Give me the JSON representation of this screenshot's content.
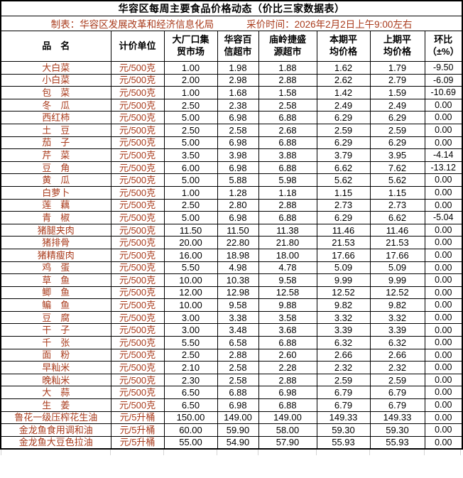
{
  "title": "华容区每周主要食品价格动态（价比三家数据表）",
  "meta": {
    "maker": "制表：华容区发展改革和经济信息化局",
    "collect_time": "采价时间：2026年2月2日上午9:00左右"
  },
  "colors": {
    "accent_red": "#a93b1c",
    "grid_black": "#000000",
    "faint_gridline_gray": "#d4d4d4"
  },
  "table": {
    "columns": [
      "品　名",
      "计价单位",
      "大厂口集\n贸市场",
      "华容百\n信超市",
      "庙岭捷盛\n源超市",
      "本期平\n均价格",
      "上期平\n均价格",
      "环比\n（±%）"
    ],
    "rows": [
      [
        "大白菜",
        "元/500克",
        "1.00",
        "1.98",
        "1.88",
        "1.62",
        "1.79",
        "-9.50"
      ],
      [
        "小白菜",
        "元/500克",
        "2.00",
        "2.98",
        "2.88",
        "2.62",
        "2.79",
        "-6.09"
      ],
      [
        "包　菜",
        "元/500克",
        "1.00",
        "1.68",
        "1.58",
        "1.42",
        "1.59",
        "-10.69"
      ],
      [
        "冬　瓜",
        "元/500克",
        "2.50",
        "2.38",
        "2.58",
        "2.49",
        "2.49",
        "0.00"
      ],
      [
        "西红柿",
        "元/500克",
        "5.00",
        "6.98",
        "6.88",
        "6.29",
        "6.29",
        "0.00"
      ],
      [
        "土　豆",
        "元/500克",
        "2.50",
        "2.58",
        "2.68",
        "2.59",
        "2.59",
        "0.00"
      ],
      [
        "茄　子",
        "元/500克",
        "5.00",
        "6.98",
        "6.88",
        "6.29",
        "6.29",
        "0.00"
      ],
      [
        "芹　菜",
        "元/500克",
        "3.50",
        "3.98",
        "3.88",
        "3.79",
        "3.95",
        "-4.14"
      ],
      [
        "豆　角",
        "元/500克",
        "6.00",
        "6.98",
        "6.88",
        "6.62",
        "7.62",
        "-13.12"
      ],
      [
        "黄　瓜",
        "元/500克",
        "5.00",
        "5.88",
        "5.98",
        "5.62",
        "5.62",
        "0.00"
      ],
      [
        "白萝卜",
        "元/500克",
        "1.00",
        "1.28",
        "1.18",
        "1.15",
        "1.15",
        "0.00"
      ],
      [
        "莲　藕",
        "元/500克",
        "2.50",
        "2.80",
        "2.88",
        "2.73",
        "2.73",
        "0.00"
      ],
      [
        "青　椒",
        "元/500克",
        "5.00",
        "6.98",
        "6.88",
        "6.29",
        "6.62",
        "-5.04"
      ],
      [
        "猪腿夹肉",
        "元/500克",
        "11.50",
        "11.50",
        "11.38",
        "11.46",
        "11.46",
        "0.00"
      ],
      [
        "猪排骨",
        "元/500克",
        "20.00",
        "22.80",
        "21.80",
        "21.53",
        "21.53",
        "0.00"
      ],
      [
        "猪精瘦肉",
        "元/500克",
        "16.00",
        "18.98",
        "18.00",
        "17.66",
        "17.66",
        "0.00"
      ],
      [
        "鸡　蛋",
        "元/500克",
        "5.50",
        "4.98",
        "4.78",
        "5.09",
        "5.09",
        "0.00"
      ],
      [
        "草　鱼",
        "元/500克",
        "10.00",
        "10.38",
        "9.58",
        "9.99",
        "9.99",
        "0.00"
      ],
      [
        "鲫　鱼",
        "元/500克",
        "12.00",
        "12.98",
        "12.58",
        "12.52",
        "12.52",
        "0.00"
      ],
      [
        "鳊　鱼",
        "元/500克",
        "10.00",
        "9.58",
        "9.88",
        "9.82",
        "9.82",
        "0.00"
      ],
      [
        "豆　腐",
        "元/500克",
        "3.00",
        "3.38",
        "3.58",
        "3.32",
        "3.32",
        "0.00"
      ],
      [
        "干　子",
        "元/500克",
        "3.00",
        "3.48",
        "3.68",
        "3.39",
        "3.39",
        "0.00"
      ],
      [
        "千　张",
        "元/500克",
        "5.50",
        "6.58",
        "6.88",
        "6.32",
        "6.32",
        "0.00"
      ],
      [
        "面　粉",
        "元/500克",
        "2.50",
        "2.88",
        "2.60",
        "2.66",
        "2.66",
        "0.00"
      ],
      [
        "早籼米",
        "元/500克",
        "2.10",
        "2.58",
        "2.28",
        "2.32",
        "2.32",
        "0.00"
      ],
      [
        "晚籼米",
        "元/500克",
        "2.30",
        "2.58",
        "2.88",
        "2.59",
        "2.59",
        "0.00"
      ],
      [
        "大　蒜",
        "元/500克",
        "6.50",
        "6.88",
        "6.98",
        "6.79",
        "6.79",
        "0.00"
      ],
      [
        "生　姜",
        "元/500克",
        "6.50",
        "6.98",
        "6.88",
        "6.79",
        "6.79",
        "0.00"
      ],
      [
        "鲁花一级压榨花生油",
        "元/5升桶",
        "150.00",
        "149.00",
        "149.00",
        "149.33",
        "149.33",
        "0.00"
      ],
      [
        "金龙鱼食用调和油",
        "元/5升桶",
        "60.00",
        "59.90",
        "58.00",
        "59.30",
        "59.30",
        "0.00"
      ],
      [
        "金龙鱼大豆色拉油",
        "元/5升桶",
        "55.00",
        "54.90",
        "57.90",
        "55.93",
        "55.93",
        "0.00"
      ]
    ]
  }
}
